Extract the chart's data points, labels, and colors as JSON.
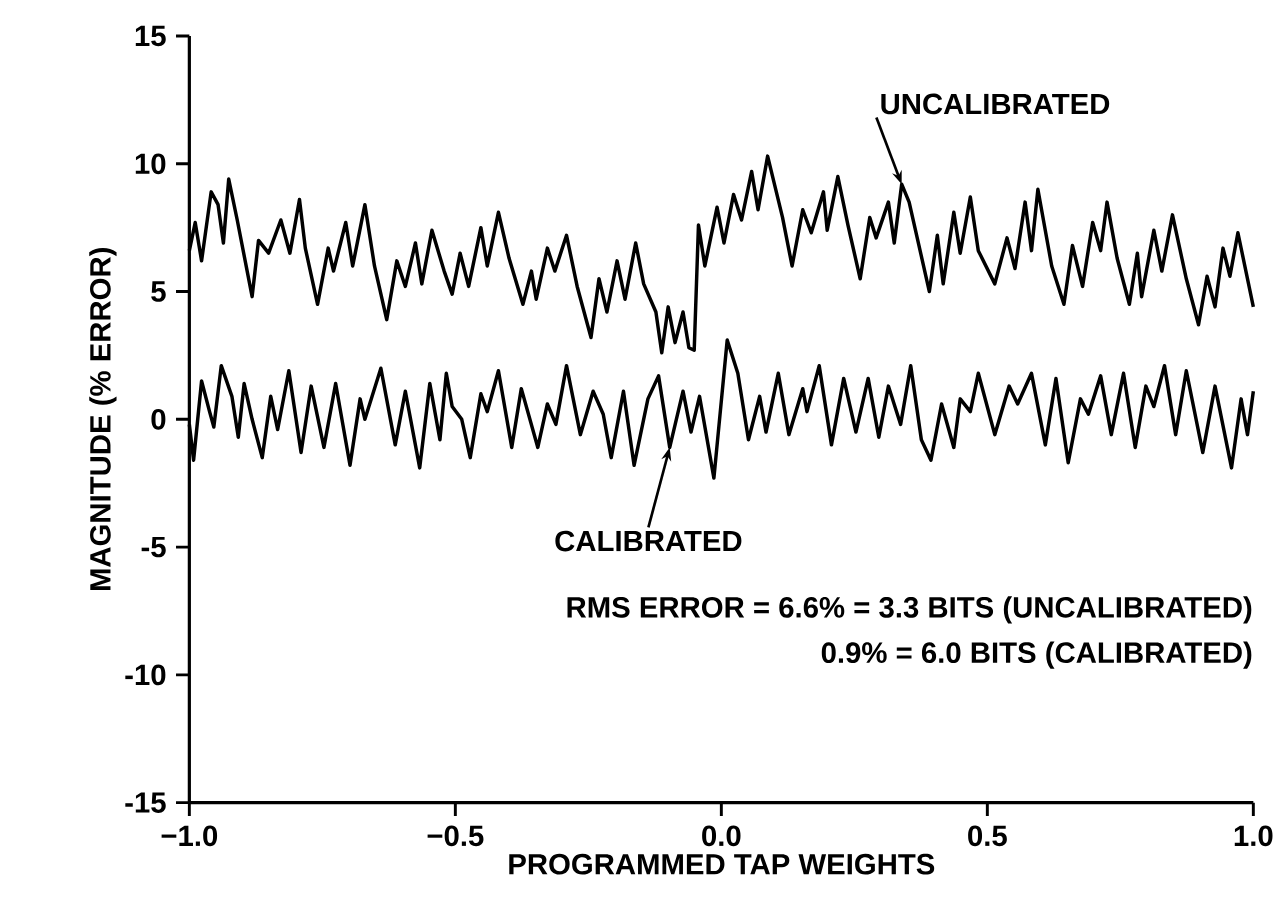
{
  "chart_data": {
    "type": "line",
    "xlabel": "PROGRAMMED TAP WEIGHTS",
    "ylabel": "MAGNITUDE (% ERROR)",
    "xlim": [
      -1,
      1
    ],
    "ylim": [
      -15,
      15
    ],
    "xticks": [
      {
        "value": -1,
        "label": "−1.0"
      },
      {
        "value": -0.5,
        "label": "−0.5"
      },
      {
        "value": 0,
        "label": "0.0"
      },
      {
        "value": 0.5,
        "label": "0.5"
      },
      {
        "value": 1,
        "label": "1.0"
      }
    ],
    "yticks": [
      -15,
      -10,
      -5,
      0,
      5,
      10,
      15
    ],
    "grid": false,
    "legend": false,
    "marker": "none",
    "line_style": "solid",
    "annotations": [
      "RMS ERROR = 6.6% = 3.3 BITS (UNCALIBRATED)",
      "0.9% = 6.0 BITS (CALIBRATED)"
    ],
    "series": [
      {
        "name": "UNCALIBRATED",
        "color": "#000000",
        "x": [
          -1.0,
          -0.989,
          -0.977,
          -0.959,
          -0.946,
          -0.936,
          -0.926,
          -0.91,
          -0.882,
          -0.87,
          -0.851,
          -0.828,
          -0.811,
          -0.793,
          -0.782,
          -0.759,
          -0.739,
          -0.729,
          -0.706,
          -0.693,
          -0.67,
          -0.652,
          -0.629,
          -0.61,
          -0.594,
          -0.575,
          -0.563,
          -0.544,
          -0.521,
          -0.506,
          -0.491,
          -0.475,
          -0.452,
          -0.44,
          -0.419,
          -0.399,
          -0.373,
          -0.357,
          -0.348,
          -0.327,
          -0.313,
          -0.291,
          -0.271,
          -0.245,
          -0.23,
          -0.215,
          -0.196,
          -0.181,
          -0.161,
          -0.146,
          -0.123,
          -0.112,
          -0.1,
          -0.087,
          -0.072,
          -0.061,
          -0.051,
          -0.043,
          -0.031,
          -0.008,
          0.005,
          0.023,
          0.038,
          0.057,
          0.069,
          0.087,
          0.115,
          0.133,
          0.153,
          0.169,
          0.192,
          0.199,
          0.219,
          0.238,
          0.261,
          0.279,
          0.291,
          0.314,
          0.325,
          0.339,
          0.353,
          0.391,
          0.406,
          0.417,
          0.437,
          0.449,
          0.468,
          0.483,
          0.514,
          0.537,
          0.552,
          0.571,
          0.583,
          0.595,
          0.621,
          0.644,
          0.66,
          0.679,
          0.698,
          0.713,
          0.725,
          0.744,
          0.767,
          0.782,
          0.79,
          0.813,
          0.828,
          0.848,
          0.874,
          0.897,
          0.913,
          0.928,
          0.943,
          0.956,
          0.971,
          1.0
        ],
        "values": [
          6.6,
          7.7,
          6.2,
          8.9,
          8.4,
          6.9,
          9.4,
          7.8,
          4.8,
          7.0,
          6.5,
          7.8,
          6.5,
          8.6,
          6.7,
          4.5,
          6.7,
          5.8,
          7.7,
          6.0,
          8.4,
          6.0,
          3.9,
          6.2,
          5.2,
          6.9,
          5.3,
          7.4,
          5.8,
          4.9,
          6.5,
          5.2,
          7.5,
          6.0,
          8.1,
          6.3,
          4.5,
          5.8,
          4.7,
          6.7,
          5.8,
          7.2,
          5.2,
          3.2,
          5.5,
          4.2,
          6.2,
          4.7,
          6.9,
          5.3,
          4.2,
          2.6,
          4.4,
          3.0,
          4.2,
          2.8,
          2.7,
          7.6,
          6.0,
          8.3,
          6.9,
          8.8,
          7.8,
          9.7,
          8.2,
          10.3,
          7.9,
          6.0,
          8.2,
          7.3,
          8.9,
          7.4,
          9.5,
          7.6,
          5.5,
          7.9,
          7.1,
          8.5,
          6.9,
          9.2,
          8.5,
          5.0,
          7.2,
          5.3,
          8.1,
          6.5,
          8.7,
          6.6,
          5.3,
          7.1,
          5.9,
          8.5,
          6.6,
          9.0,
          6.0,
          4.5,
          6.8,
          5.2,
          7.7,
          6.6,
          8.5,
          6.3,
          4.5,
          6.5,
          4.8,
          7.4,
          5.8,
          8.0,
          5.5,
          3.7,
          5.6,
          4.4,
          6.7,
          5.6,
          7.3,
          4.4
        ]
      },
      {
        "name": "CALIBRATED",
        "color": "#000000",
        "x": [
          -1.0,
          -0.992,
          -0.977,
          -0.962,
          -0.954,
          -0.94,
          -0.92,
          -0.908,
          -0.897,
          -0.882,
          -0.863,
          -0.847,
          -0.834,
          -0.813,
          -0.79,
          -0.771,
          -0.747,
          -0.725,
          -0.698,
          -0.679,
          -0.67,
          -0.64,
          -0.613,
          -0.594,
          -0.567,
          -0.548,
          -0.529,
          -0.517,
          -0.506,
          -0.488,
          -0.472,
          -0.452,
          -0.44,
          -0.419,
          -0.394,
          -0.376,
          -0.345,
          -0.327,
          -0.311,
          -0.291,
          -0.265,
          -0.241,
          -0.222,
          -0.207,
          -0.184,
          -0.164,
          -0.138,
          -0.118,
          -0.097,
          -0.072,
          -0.057,
          -0.041,
          -0.014,
          0.011,
          0.031,
          0.051,
          0.072,
          0.084,
          0.107,
          0.127,
          0.153,
          0.161,
          0.184,
          0.207,
          0.23,
          0.253,
          0.276,
          0.296,
          0.314,
          0.337,
          0.356,
          0.376,
          0.394,
          0.414,
          0.437,
          0.449,
          0.468,
          0.483,
          0.514,
          0.541,
          0.557,
          0.583,
          0.609,
          0.629,
          0.652,
          0.675,
          0.69,
          0.713,
          0.733,
          0.756,
          0.778,
          0.798,
          0.813,
          0.833,
          0.854,
          0.874,
          0.905,
          0.928,
          0.959,
          0.977,
          0.989,
          1.0
        ],
        "values": [
          -0.2,
          -1.6,
          1.5,
          0.3,
          -0.3,
          2.1,
          0.9,
          -0.7,
          1.4,
          0.0,
          -1.5,
          0.9,
          -0.4,
          1.9,
          -1.3,
          1.3,
          -1.1,
          1.4,
          -1.8,
          0.8,
          0.0,
          2.0,
          -1.0,
          1.1,
          -1.9,
          1.4,
          -0.8,
          1.8,
          0.5,
          0.0,
          -1.5,
          1.0,
          0.3,
          1.9,
          -1.1,
          1.2,
          -1.1,
          0.6,
          -0.2,
          2.1,
          -0.6,
          1.1,
          0.2,
          -1.5,
          1.1,
          -1.8,
          0.8,
          1.7,
          -1.1,
          1.1,
          -0.5,
          0.9,
          -2.3,
          3.1,
          1.8,
          -0.8,
          0.9,
          -0.5,
          1.8,
          -0.6,
          1.2,
          0.3,
          2.1,
          -1.0,
          1.6,
          -0.5,
          1.6,
          -0.7,
          1.3,
          -0.2,
          2.1,
          -0.8,
          -1.6,
          0.6,
          -1.1,
          0.8,
          0.3,
          1.8,
          -0.6,
          1.3,
          0.6,
          1.8,
          -1.0,
          1.6,
          -1.7,
          0.8,
          0.2,
          1.7,
          -0.6,
          1.8,
          -1.1,
          1.3,
          0.5,
          2.1,
          -0.6,
          1.9,
          -1.3,
          1.3,
          -1.9,
          0.8,
          -0.6,
          1.1
        ]
      }
    ]
  }
}
